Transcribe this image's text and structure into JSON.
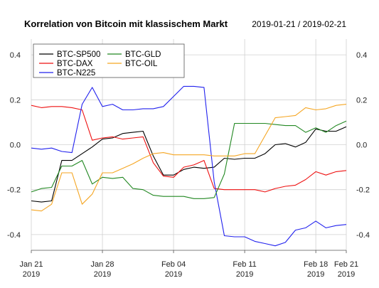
{
  "chart_data": {
    "type": "line",
    "title": "Korrelation von Bitcoin mit klassischem Markt",
    "subtitle": "2019-01-21 / 2019-02-21",
    "xlabel": "",
    "ylabel": "",
    "ylim": [
      -0.47,
      0.47
    ],
    "y_ticks": [
      -0.4,
      -0.2,
      0.0,
      0.2,
      0.4
    ],
    "y_tick_labels": [
      "-0.4",
      "-0.2",
      "0.0",
      "0.2",
      "0.4"
    ],
    "x_range": [
      "2019-01-21",
      "2019-02-21"
    ],
    "x_ticks": [
      {
        "date": "2019-01-21",
        "label": "Jan 21",
        "year": "2019"
      },
      {
        "date": "2019-01-28",
        "label": "Jan 28",
        "year": "2019"
      },
      {
        "date": "2019-02-04",
        "label": "Feb 04",
        "year": "2019"
      },
      {
        "date": "2019-02-11",
        "label": "Feb 11",
        "year": "2019"
      },
      {
        "date": "2019-02-18",
        "label": "Feb 18",
        "year": "2019"
      },
      {
        "date": "2019-02-21",
        "label": "Feb 21",
        "year": "2019"
      }
    ],
    "grid": true,
    "legend_position": "top-left",
    "x": [
      "2019-01-21",
      "2019-01-22",
      "2019-01-23",
      "2019-01-24",
      "2019-01-25",
      "2019-01-26",
      "2019-01-27",
      "2019-01-28",
      "2019-01-29",
      "2019-01-30",
      "2019-01-31",
      "2019-02-01",
      "2019-02-02",
      "2019-02-03",
      "2019-02-04",
      "2019-02-05",
      "2019-02-06",
      "2019-02-07",
      "2019-02-08",
      "2019-02-09",
      "2019-02-10",
      "2019-02-11",
      "2019-02-12",
      "2019-02-13",
      "2019-02-14",
      "2019-02-15",
      "2019-02-16",
      "2019-02-17",
      "2019-02-18",
      "2019-02-19",
      "2019-02-20",
      "2019-02-21"
    ],
    "series": [
      {
        "name": "BTC-SP500",
        "color": "#000000",
        "values": [
          -0.25,
          -0.255,
          -0.25,
          -0.07,
          -0.07,
          -0.04,
          -0.01,
          0.025,
          0.03,
          0.05,
          0.055,
          0.06,
          -0.05,
          -0.135,
          -0.135,
          -0.11,
          -0.1,
          -0.105,
          -0.1,
          -0.06,
          -0.065,
          -0.06,
          -0.06,
          -0.04,
          0.0,
          0.005,
          -0.01,
          0.01,
          0.07,
          0.06,
          0.06,
          0.08
        ]
      },
      {
        "name": "BTC-DAX",
        "color": "#ee1111",
        "values": [
          0.175,
          0.165,
          0.17,
          0.17,
          0.165,
          0.155,
          0.02,
          0.03,
          0.035,
          0.025,
          0.03,
          0.035,
          -0.08,
          -0.14,
          -0.145,
          -0.1,
          -0.09,
          -0.07,
          -0.195,
          -0.2,
          -0.2,
          -0.2,
          -0.2,
          -0.21,
          -0.195,
          -0.185,
          -0.18,
          -0.155,
          -0.12,
          -0.135,
          -0.12,
          -0.115
        ]
      },
      {
        "name": "BTC-N225",
        "color": "#2222ee",
        "values": [
          -0.015,
          -0.02,
          -0.015,
          -0.03,
          -0.035,
          0.18,
          0.255,
          0.17,
          0.18,
          0.155,
          0.155,
          0.16,
          0.16,
          0.17,
          0.215,
          0.26,
          0.26,
          0.255,
          -0.165,
          -0.405,
          -0.41,
          -0.41,
          -0.43,
          -0.44,
          -0.45,
          -0.435,
          -0.38,
          -0.37,
          -0.34,
          -0.37,
          -0.36,
          -0.355
        ]
      },
      {
        "name": "BTC-GLD",
        "color": "#228822",
        "values": [
          -0.21,
          -0.195,
          -0.19,
          -0.095,
          -0.095,
          -0.07,
          -0.175,
          -0.145,
          -0.15,
          -0.145,
          -0.195,
          -0.2,
          -0.225,
          -0.23,
          -0.23,
          -0.23,
          -0.24,
          -0.24,
          -0.235,
          -0.13,
          0.095,
          0.095,
          0.095,
          0.095,
          0.09,
          0.085,
          0.085,
          0.055,
          0.075,
          0.055,
          0.085,
          0.105
        ]
      },
      {
        "name": "BTC-OIL",
        "color": "#f5a623",
        "values": [
          -0.29,
          -0.295,
          -0.265,
          -0.125,
          -0.125,
          -0.265,
          -0.22,
          -0.125,
          -0.125,
          -0.105,
          -0.085,
          -0.06,
          -0.04,
          -0.035,
          -0.045,
          -0.045,
          -0.045,
          -0.045,
          -0.05,
          -0.05,
          -0.05,
          -0.04,
          -0.04,
          0.04,
          0.12,
          0.125,
          0.13,
          0.165,
          0.155,
          0.16,
          0.175,
          0.18
        ]
      }
    ]
  }
}
